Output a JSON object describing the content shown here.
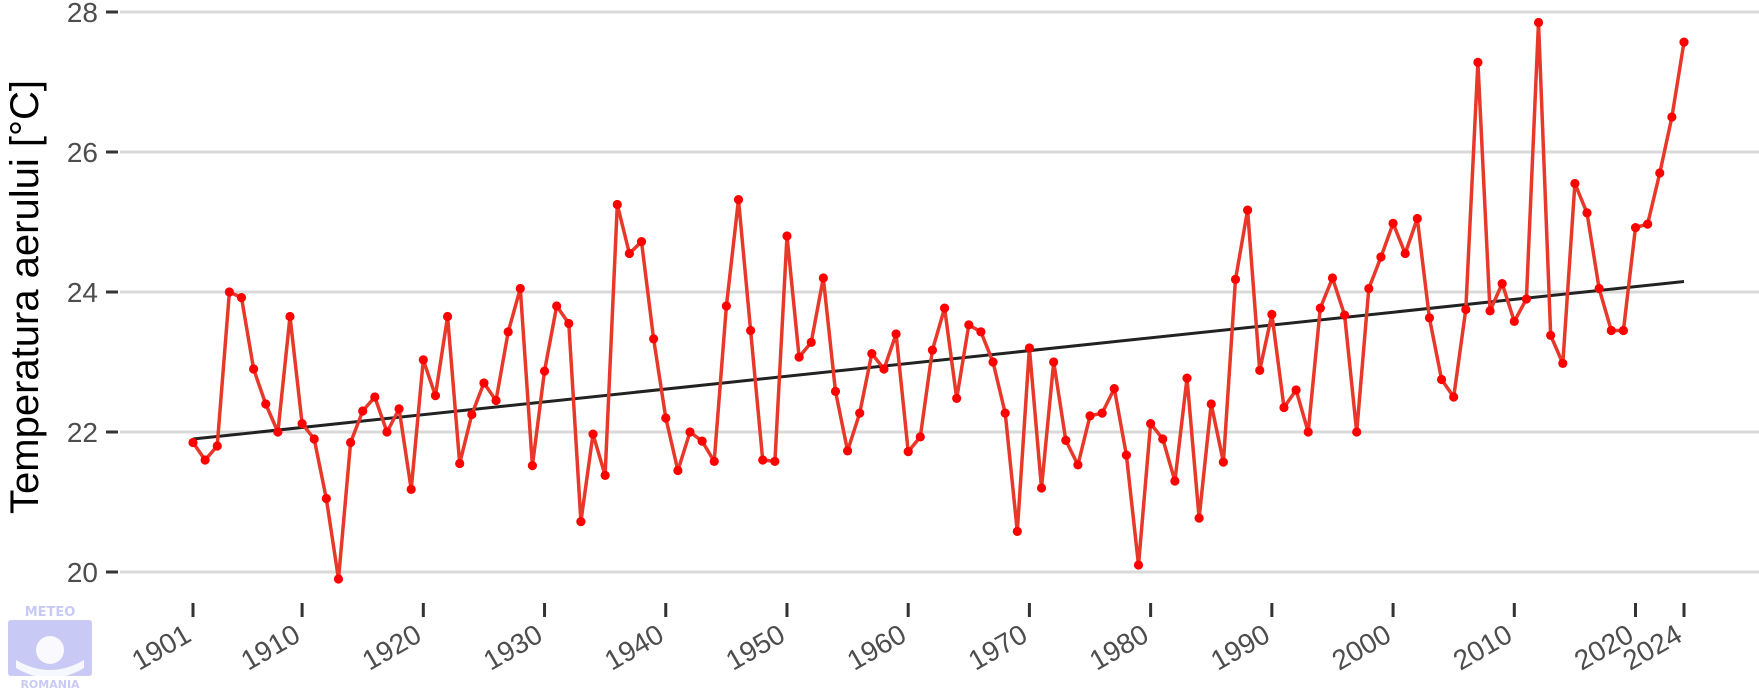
{
  "chart_data": {
    "type": "line",
    "title": "",
    "xlabel": "",
    "ylabel": "Temperatura aerului [°C]",
    "xlim": [
      1901,
      2024
    ],
    "ylim": [
      20,
      28
    ],
    "x_ticks": [
      1901,
      1910,
      1920,
      1930,
      1940,
      1950,
      1960,
      1970,
      1980,
      1990,
      2000,
      2010,
      2020,
      2024
    ],
    "y_ticks": [
      20,
      22,
      24,
      26,
      28
    ],
    "grid": "horizontal",
    "legend": "none",
    "series": [
      {
        "color": "#e8382a",
        "marker_color": "#ff0000",
        "x": [
          1901,
          1902,
          1903,
          1904,
          1905,
          1906,
          1907,
          1908,
          1909,
          1910,
          1911,
          1912,
          1913,
          1914,
          1915,
          1916,
          1917,
          1918,
          1919,
          1920,
          1921,
          1922,
          1923,
          1924,
          1925,
          1926,
          1927,
          1928,
          1929,
          1930,
          1931,
          1932,
          1933,
          1934,
          1935,
          1936,
          1937,
          1938,
          1939,
          1940,
          1941,
          1942,
          1943,
          1944,
          1945,
          1946,
          1947,
          1948,
          1949,
          1950,
          1951,
          1952,
          1953,
          1954,
          1955,
          1956,
          1957,
          1958,
          1959,
          1960,
          1961,
          1962,
          1963,
          1964,
          1965,
          1966,
          1967,
          1968,
          1969,
          1970,
          1971,
          1972,
          1973,
          1974,
          1975,
          1976,
          1977,
          1978,
          1979,
          1980,
          1981,
          1982,
          1983,
          1984,
          1985,
          1986,
          1987,
          1988,
          1989,
          1990,
          1991,
          1992,
          1993,
          1994,
          1995,
          1996,
          1997,
          1998,
          1999,
          2000,
          2001,
          2002,
          2003,
          2004,
          2005,
          2006,
          2007,
          2008,
          2009,
          2010,
          2011,
          2012,
          2013,
          2014,
          2015,
          2016,
          2017,
          2018,
          2019,
          2020,
          2021,
          2022,
          2023,
          2024
        ],
        "y": [
          21.85,
          21.6,
          21.8,
          24.0,
          23.92,
          22.9,
          22.4,
          22.0,
          23.65,
          22.12,
          21.9,
          21.05,
          19.9,
          21.85,
          22.3,
          22.5,
          22.0,
          22.33,
          21.18,
          23.03,
          22.52,
          23.65,
          21.55,
          22.25,
          22.7,
          22.45,
          23.43,
          24.05,
          21.52,
          22.87,
          23.8,
          23.55,
          20.72,
          21.97,
          21.38,
          25.25,
          24.55,
          24.72,
          23.33,
          22.2,
          21.45,
          22.0,
          21.87,
          21.58,
          23.8,
          25.32,
          23.45,
          21.6,
          21.58,
          24.8,
          23.07,
          23.28,
          24.2,
          22.58,
          21.73,
          22.27,
          23.12,
          22.9,
          23.4,
          21.72,
          21.93,
          23.17,
          23.77,
          22.48,
          23.53,
          23.43,
          23.0,
          22.27,
          20.58,
          23.2,
          21.2,
          23.0,
          21.88,
          21.53,
          22.23,
          22.27,
          22.62,
          21.67,
          20.1,
          22.12,
          21.9,
          21.3,
          22.77,
          20.77,
          22.4,
          21.57,
          24.18,
          25.17,
          22.88,
          23.68,
          22.35,
          22.6,
          22.0,
          23.77,
          24.2,
          23.67,
          22.0,
          24.05,
          24.5,
          24.98,
          24.55,
          25.05,
          23.63,
          22.75,
          22.5,
          23.75,
          27.28,
          23.73,
          24.12,
          23.58,
          23.9,
          27.85,
          23.38,
          22.98,
          25.55,
          25.13,
          24.05,
          23.45,
          23.45,
          24.92,
          24.97,
          25.7,
          26.5,
          27.57
        ]
      }
    ],
    "trend": {
      "color": "#222222",
      "x": [
        1901,
        2024
      ],
      "y": [
        21.9,
        24.15
      ]
    }
  },
  "logo": {
    "line1": "METEO",
    "line2": "ROMANIA",
    "color": "#c8caf5"
  }
}
